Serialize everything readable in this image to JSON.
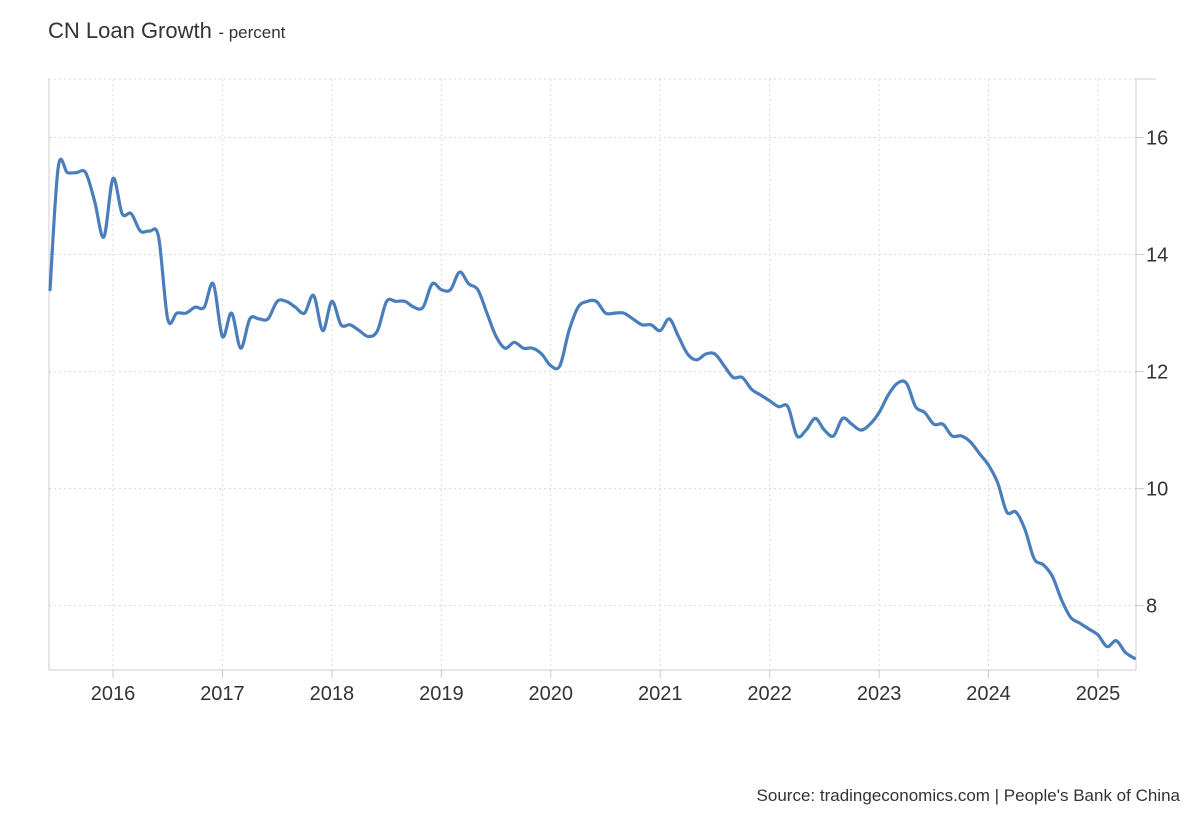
{
  "chart_data": {
    "type": "line",
    "title": "CN Loan Growth",
    "subtitle": "- percent",
    "source": "Source: tradingeconomics.com | People's Bank of China",
    "xlabel": "",
    "ylabel": "",
    "ylim": [
      6.9,
      17.0
    ],
    "y_ticks": [
      8,
      10,
      12,
      14,
      16
    ],
    "x_ticks": [
      "2016",
      "2017",
      "2018",
      "2019",
      "2020",
      "2021",
      "2022",
      "2023",
      "2024",
      "2025"
    ],
    "grid": true,
    "y_axis_position": "right",
    "line_color": "#4a7ebb",
    "series": [
      {
        "x": [
          "2015-06",
          "2015-07",
          "2015-08",
          "2015-09",
          "2015-10",
          "2015-11",
          "2015-12",
          "2016-01",
          "2016-02",
          "2016-03",
          "2016-04",
          "2016-05",
          "2016-06",
          "2016-07",
          "2016-08",
          "2016-09",
          "2016-10",
          "2016-11",
          "2016-12",
          "2017-01",
          "2017-02",
          "2017-03",
          "2017-04",
          "2017-05",
          "2017-06",
          "2017-07",
          "2017-08",
          "2017-09",
          "2017-10",
          "2017-11",
          "2017-12",
          "2018-01",
          "2018-02",
          "2018-03",
          "2018-04",
          "2018-05",
          "2018-06",
          "2018-07",
          "2018-08",
          "2018-09",
          "2018-10",
          "2018-11",
          "2018-12",
          "2019-01",
          "2019-02",
          "2019-03",
          "2019-04",
          "2019-05",
          "2019-06",
          "2019-07",
          "2019-08",
          "2019-09",
          "2019-10",
          "2019-11",
          "2019-12",
          "2020-01",
          "2020-02",
          "2020-03",
          "2020-04",
          "2020-05",
          "2020-06",
          "2020-07",
          "2020-08",
          "2020-09",
          "2020-10",
          "2020-11",
          "2020-12",
          "2021-01",
          "2021-02",
          "2021-03",
          "2021-04",
          "2021-05",
          "2021-06",
          "2021-07",
          "2021-08",
          "2021-09",
          "2021-10",
          "2021-11",
          "2021-12",
          "2022-01",
          "2022-02",
          "2022-03",
          "2022-04",
          "2022-05",
          "2022-06",
          "2022-07",
          "2022-08",
          "2022-09",
          "2022-10",
          "2022-11",
          "2022-12",
          "2023-01",
          "2023-02",
          "2023-03",
          "2023-04",
          "2023-05",
          "2023-06",
          "2023-07",
          "2023-08",
          "2023-09",
          "2023-10",
          "2023-11",
          "2023-12",
          "2024-01",
          "2024-02",
          "2024-03",
          "2024-04",
          "2024-05",
          "2024-06",
          "2024-07",
          "2024-08",
          "2024-09",
          "2024-10",
          "2024-11",
          "2024-12",
          "2025-01",
          "2025-02",
          "2025-03",
          "2025-04",
          "2025-05"
        ],
        "values": [
          13.4,
          15.5,
          15.4,
          15.4,
          15.4,
          14.9,
          14.3,
          15.3,
          14.7,
          14.7,
          14.4,
          14.4,
          14.3,
          12.9,
          13.0,
          13.0,
          13.1,
          13.1,
          13.5,
          12.6,
          13.0,
          12.4,
          12.9,
          12.9,
          12.9,
          13.2,
          13.2,
          13.1,
          13.0,
          13.3,
          12.7,
          13.2,
          12.8,
          12.8,
          12.7,
          12.6,
          12.7,
          13.2,
          13.2,
          13.2,
          13.1,
          13.1,
          13.5,
          13.4,
          13.4,
          13.7,
          13.5,
          13.4,
          13.0,
          12.6,
          12.4,
          12.5,
          12.4,
          12.4,
          12.3,
          12.1,
          12.1,
          12.7,
          13.1,
          13.2,
          13.2,
          13.0,
          13.0,
          13.0,
          12.9,
          12.8,
          12.8,
          12.7,
          12.9,
          12.6,
          12.3,
          12.2,
          12.3,
          12.3,
          12.1,
          11.9,
          11.9,
          11.7,
          11.6,
          11.5,
          11.4,
          11.4,
          10.9,
          11.0,
          11.2,
          11.0,
          10.9,
          11.2,
          11.1,
          11.0,
          11.1,
          11.3,
          11.6,
          11.8,
          11.8,
          11.4,
          11.3,
          11.1,
          11.1,
          10.9,
          10.9,
          10.8,
          10.6,
          10.4,
          10.1,
          9.6,
          9.6,
          9.3,
          8.8,
          8.7,
          8.5,
          8.1,
          7.8,
          7.7,
          7.6,
          7.5,
          7.3,
          7.4,
          7.2,
          7.1
        ]
      }
    ]
  }
}
